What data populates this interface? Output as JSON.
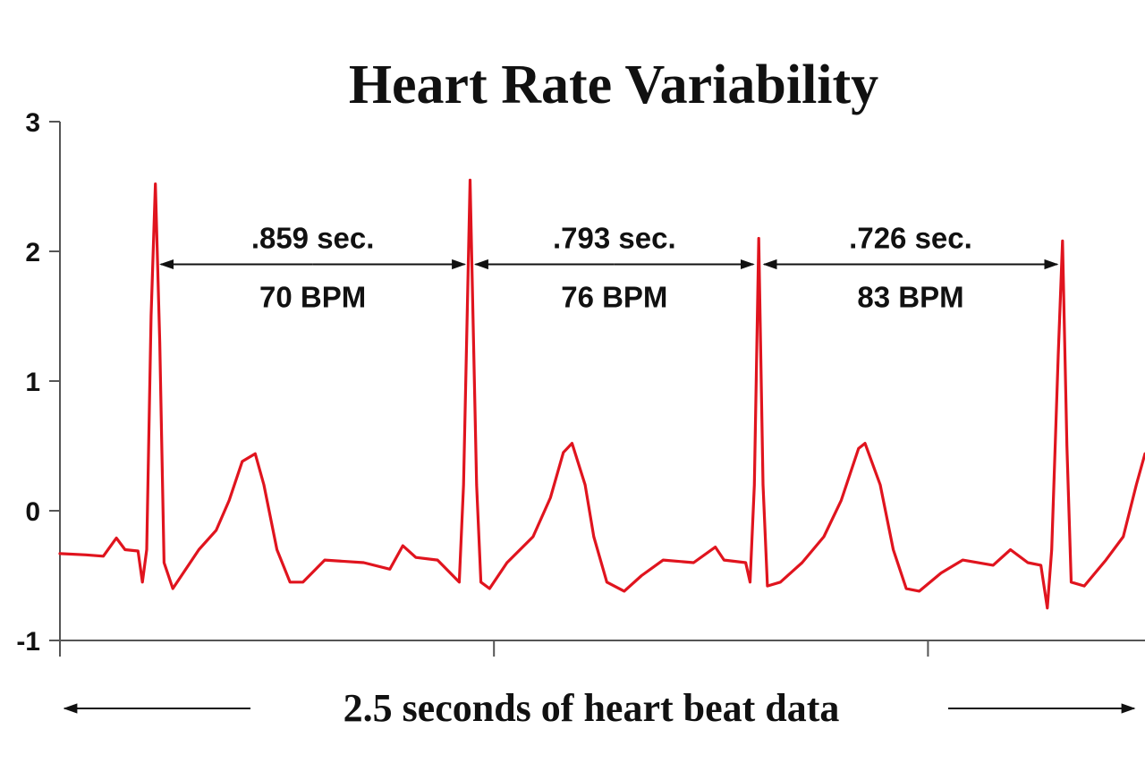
{
  "chart_data": {
    "type": "line",
    "title": "Heart Rate Variability",
    "xlabel": "2.5 seconds of heart beat data",
    "ylabel": "",
    "xlim": [
      0,
      2.5
    ],
    "ylim": [
      -1,
      3
    ],
    "y_ticks": [
      "-1",
      "0",
      "1",
      "2",
      "3"
    ],
    "grid": false,
    "legend": "none",
    "colors": {
      "trace": "#e0141e",
      "axis": "#555555",
      "text": "#111111"
    },
    "series": [
      {
        "points": [
          [
            0.0,
            -0.33
          ],
          [
            0.06,
            -0.34
          ],
          [
            0.1,
            -0.35
          ],
          [
            0.13,
            -0.21
          ],
          [
            0.15,
            -0.3
          ],
          [
            0.18,
            -0.31
          ],
          [
            0.19,
            -0.55
          ],
          [
            0.2,
            -0.3
          ],
          [
            0.21,
            1.5
          ],
          [
            0.22,
            2.52
          ],
          [
            0.23,
            1.3
          ],
          [
            0.24,
            -0.4
          ],
          [
            0.26,
            -0.6
          ],
          [
            0.28,
            -0.5
          ],
          [
            0.32,
            -0.3
          ],
          [
            0.36,
            -0.15
          ],
          [
            0.39,
            0.08
          ],
          [
            0.42,
            0.38
          ],
          [
            0.45,
            0.44
          ],
          [
            0.47,
            0.2
          ],
          [
            0.5,
            -0.3
          ],
          [
            0.53,
            -0.55
          ],
          [
            0.56,
            -0.55
          ],
          [
            0.61,
            -0.38
          ],
          [
            0.7,
            -0.4
          ],
          [
            0.76,
            -0.45
          ],
          [
            0.79,
            -0.27
          ],
          [
            0.82,
            -0.36
          ],
          [
            0.87,
            -0.38
          ],
          [
            0.92,
            -0.55
          ],
          [
            0.93,
            0.2
          ],
          [
            0.945,
            2.55
          ],
          [
            0.96,
            0.2
          ],
          [
            0.97,
            -0.55
          ],
          [
            0.99,
            -0.6
          ],
          [
            1.03,
            -0.4
          ],
          [
            1.09,
            -0.2
          ],
          [
            1.13,
            0.1
          ],
          [
            1.16,
            0.45
          ],
          [
            1.18,
            0.52
          ],
          [
            1.21,
            0.2
          ],
          [
            1.23,
            -0.2
          ],
          [
            1.26,
            -0.55
          ],
          [
            1.3,
            -0.62
          ],
          [
            1.34,
            -0.5
          ],
          [
            1.39,
            -0.38
          ],
          [
            1.46,
            -0.4
          ],
          [
            1.51,
            -0.28
          ],
          [
            1.53,
            -0.38
          ],
          [
            1.58,
            -0.4
          ],
          [
            1.59,
            -0.55
          ],
          [
            1.6,
            0.2
          ],
          [
            1.61,
            2.1
          ],
          [
            1.62,
            0.2
          ],
          [
            1.63,
            -0.58
          ],
          [
            1.66,
            -0.55
          ],
          [
            1.71,
            -0.4
          ],
          [
            1.76,
            -0.2
          ],
          [
            1.8,
            0.08
          ],
          [
            1.84,
            0.48
          ],
          [
            1.855,
            0.52
          ],
          [
            1.89,
            0.2
          ],
          [
            1.92,
            -0.3
          ],
          [
            1.95,
            -0.6
          ],
          [
            1.98,
            -0.62
          ],
          [
            2.03,
            -0.48
          ],
          [
            2.08,
            -0.38
          ],
          [
            2.15,
            -0.42
          ],
          [
            2.19,
            -0.3
          ],
          [
            2.23,
            -0.4
          ],
          [
            2.26,
            -0.42
          ],
          [
            2.275,
            -0.75
          ],
          [
            2.285,
            -0.3
          ],
          [
            2.3,
            1.2
          ],
          [
            2.31,
            2.08
          ],
          [
            2.32,
            0.5
          ],
          [
            2.33,
            -0.55
          ],
          [
            2.36,
            -0.58
          ],
          [
            2.41,
            -0.38
          ],
          [
            2.45,
            -0.2
          ],
          [
            2.48,
            0.2
          ],
          [
            2.5,
            0.44
          ]
        ]
      }
    ],
    "annotations": [
      {
        "interval": ".859 sec.",
        "rate": "70 BPM",
        "x_start": 0.22,
        "x_end": 0.945
      },
      {
        "interval": ".793 sec.",
        "rate": "76 BPM",
        "x_start": 0.945,
        "x_end": 1.61
      },
      {
        "interval": ".726 sec.",
        "rate": "83 BPM",
        "x_start": 1.61,
        "x_end": 2.31
      }
    ]
  }
}
